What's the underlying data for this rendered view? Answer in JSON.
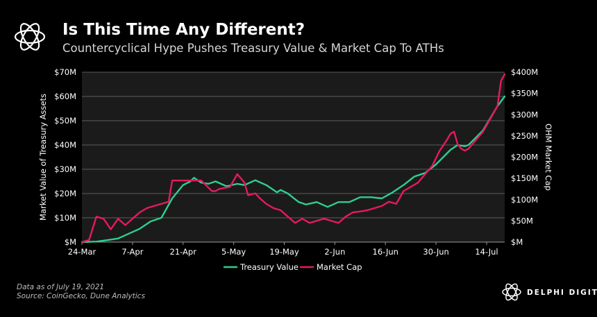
{
  "header": {
    "title": "Is This Time Any Different?",
    "subtitle": "Countercyclical Hype Pushes Treasury Value & Market Cap To ATHs"
  },
  "footer": {
    "data_note": "Data as of July 19, 2021",
    "source": "Source: CoinGecko, Dune Analytics"
  },
  "brand": {
    "name": "DELPHI DIGITAL",
    "icon": "delphi-ring-icon"
  },
  "colors": {
    "background": "#000000",
    "plot_background": "#1b1b1b",
    "treasury": "#2ecf8f",
    "market_cap": "#e8195f",
    "grid": "#9a9a9a",
    "text": "#ffffff"
  },
  "chart_data": {
    "type": "line",
    "ylabel": "Market Value of Treasury Assets",
    "y2label": "OHM Market Cap",
    "ylim": [
      0,
      70
    ],
    "y2lim": [
      0,
      400
    ],
    "y_ticks": [
      0,
      10,
      20,
      30,
      40,
      50,
      60,
      70
    ],
    "y_tick_labels": [
      "$M",
      "$10M",
      "$20M",
      "$30M",
      "$40M",
      "$50M",
      "$60M",
      "$70M"
    ],
    "y2_ticks": [
      0,
      50,
      100,
      150,
      200,
      250,
      300,
      350,
      400
    ],
    "y2_tick_labels": [
      "$M",
      "$50M",
      "$100M",
      "$150M",
      "$200M",
      "$250M",
      "$300M",
      "$350M",
      "$400M"
    ],
    "xlim": [
      0,
      117
    ],
    "x_ticks": [
      0,
      14,
      28,
      42,
      56,
      70,
      84,
      98,
      112
    ],
    "x_tick_labels": [
      "24-Mar",
      "7-Apr",
      "21-Apr",
      "5-May",
      "19-May",
      "2-Jun",
      "16-Jun",
      "30-Jun",
      "14-Jul"
    ],
    "x_unit": "days since 24-Mar-2021",
    "grid": true,
    "legend": "bottom-center",
    "series": [
      {
        "name": "Treasury Value",
        "axis": "left",
        "unit": "$M",
        "x": [
          0,
          4,
          7,
          10,
          13,
          16,
          19,
          22,
          25,
          28,
          30,
          31,
          33,
          35,
          37,
          40,
          43,
          45,
          48,
          51,
          54,
          55,
          57,
          60,
          62,
          65,
          68,
          71,
          74,
          77,
          80,
          83,
          86,
          89,
          92,
          95,
          98,
          100,
          102,
          104,
          106,
          107,
          109,
          111,
          113,
          115,
          117
        ],
        "y": [
          0,
          0.2,
          0.8,
          1.5,
          3.5,
          5.5,
          8.5,
          10,
          18,
          23.5,
          25,
          26.5,
          24.5,
          24,
          25,
          23,
          24,
          23.5,
          25.5,
          23.5,
          20.5,
          21.5,
          20,
          16.5,
          15.5,
          16.5,
          14.5,
          16.5,
          16.5,
          18.5,
          18.5,
          18,
          20.5,
          23.5,
          27,
          28.5,
          32,
          35,
          38,
          40,
          39.5,
          40,
          43,
          46,
          51,
          56,
          60
        ]
      },
      {
        "name": "Market Cap",
        "axis": "right",
        "unit": "$M",
        "x": [
          0,
          2,
          4,
          6,
          8,
          10,
          12,
          14,
          16,
          18,
          20,
          22,
          24,
          25,
          27,
          30,
          33,
          36,
          37,
          38,
          41,
          43,
          45,
          46,
          48,
          49,
          51,
          53,
          55,
          57,
          59,
          61,
          63,
          65,
          67,
          69,
          71,
          73,
          75,
          77,
          79,
          81,
          83,
          85,
          87,
          89,
          91,
          93,
          95,
          97,
          99,
          101,
          102,
          103,
          104,
          105,
          106,
          107,
          109,
          111,
          113,
          115,
          116,
          117
        ],
        "y": [
          0,
          5,
          60,
          55,
          30,
          55,
          40,
          55,
          70,
          80,
          85,
          90,
          95,
          145,
          145,
          145,
          145,
          120,
          120,
          125,
          130,
          160,
          140,
          110,
          115,
          105,
          90,
          80,
          75,
          60,
          45,
          55,
          45,
          50,
          55,
          50,
          45,
          60,
          70,
          72,
          75,
          80,
          85,
          95,
          90,
          120,
          130,
          140,
          160,
          180,
          215,
          240,
          255,
          260,
          230,
          220,
          215,
          220,
          240,
          260,
          290,
          320,
          380,
          395
        ]
      }
    ]
  }
}
